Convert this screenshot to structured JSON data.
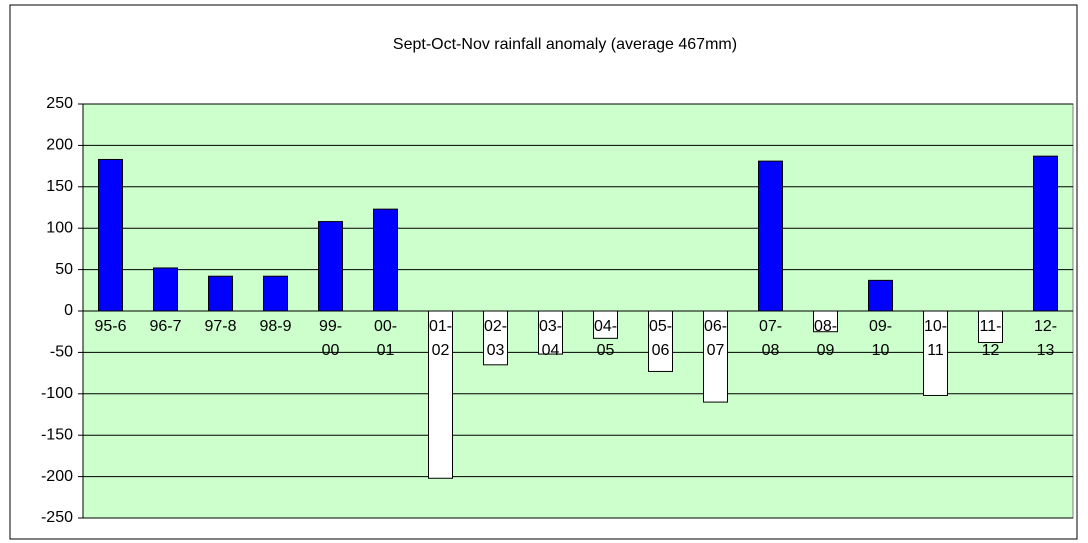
{
  "chart_data": {
    "type": "bar",
    "title": "Sept-Oct-Nov rainfall anomaly (average 467mm)",
    "categories": [
      "95-6",
      "96-7",
      "97-8",
      "98-9",
      "99-00",
      "00-01",
      "01-02",
      "02-03",
      "03-04",
      "04-05",
      "05-06",
      "06-07",
      "07-08",
      "08-09",
      "09-10",
      "10-11",
      "11-12",
      "12-13"
    ],
    "values": [
      183,
      52,
      42,
      42,
      108,
      123,
      -202,
      -65,
      -52,
      -33,
      -73,
      -110,
      181,
      -25,
      37,
      -102,
      -38,
      187
    ],
    "color": "#0000ff",
    "negative_color": "#ffffff",
    "plot_background": "#ccffcc",
    "ylim": [
      -250,
      250
    ],
    "yticks": [
      -250,
      -200,
      -150,
      -100,
      -50,
      0,
      50,
      100,
      150,
      200,
      250
    ],
    "grid": true
  }
}
